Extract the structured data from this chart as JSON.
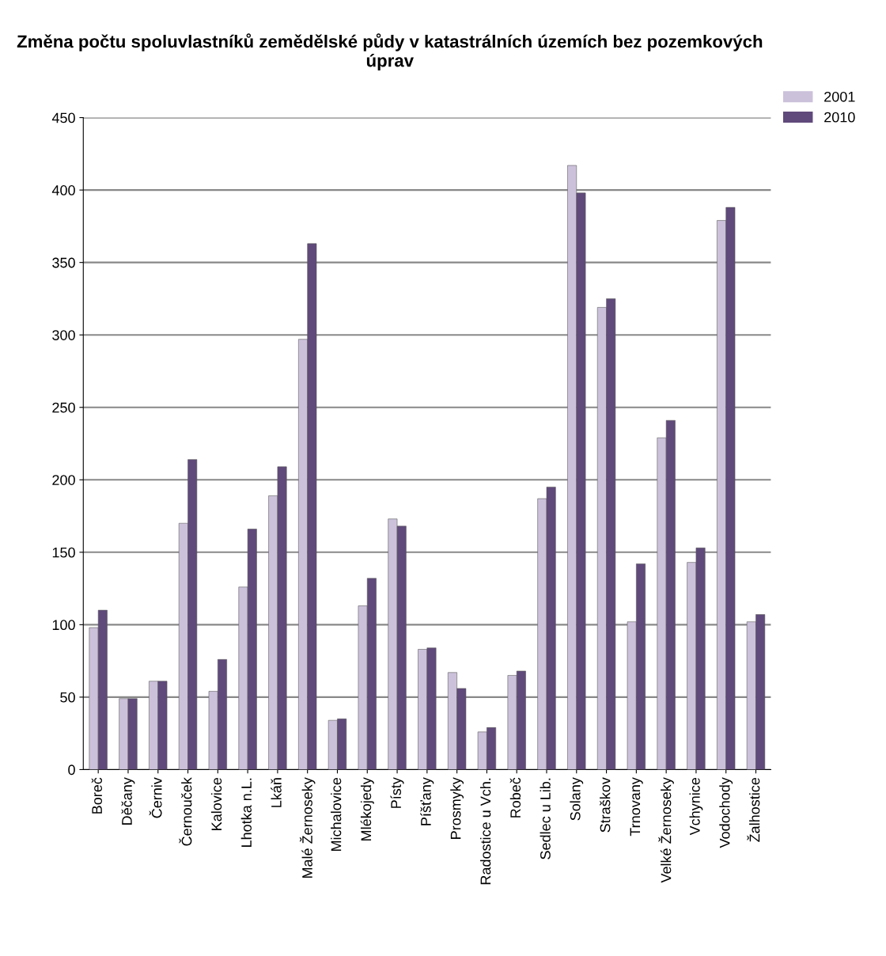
{
  "chart_data": {
    "type": "bar",
    "title": "Změna počtu spoluvlastníků zemědělské půdy v katastrálních územích bez pozemkových úprav",
    "categories": [
      "Boreč",
      "Děčany",
      "Černiv",
      "Černouček",
      "Kalovice",
      "Lhotka n.L.",
      "Lkáň",
      "Malé Žernoseky",
      "Michalovice",
      "Mlékojedy",
      "Písty",
      "Píšťany",
      "Prosmyky",
      "Radostice u Vch.",
      "Robeč",
      "Sedlec u Lib.",
      "Solany",
      "Straškov",
      "Trnovany",
      "Velké Žernoseky",
      "Vchynice",
      "Vodochody",
      "Žalhostice"
    ],
    "series": [
      {
        "name": "2001",
        "color": "#ccc1da",
        "values": [
          98,
          49,
          61,
          170,
          54,
          126,
          189,
          297,
          34,
          113,
          173,
          83,
          67,
          26,
          65,
          187,
          417,
          319,
          102,
          229,
          143,
          379,
          102
        ]
      },
      {
        "name": "2010",
        "color": "#604a7b",
        "values": [
          110,
          49,
          61,
          214,
          76,
          166,
          209,
          363,
          35,
          132,
          168,
          84,
          56,
          29,
          68,
          195,
          398,
          325,
          142,
          241,
          153,
          388,
          107
        ]
      }
    ],
    "ylim": [
      0,
      450
    ],
    "yticks": [
      0,
      50,
      100,
      150,
      200,
      250,
      300,
      350,
      400,
      450
    ],
    "grid": "y",
    "legend": "top right"
  }
}
